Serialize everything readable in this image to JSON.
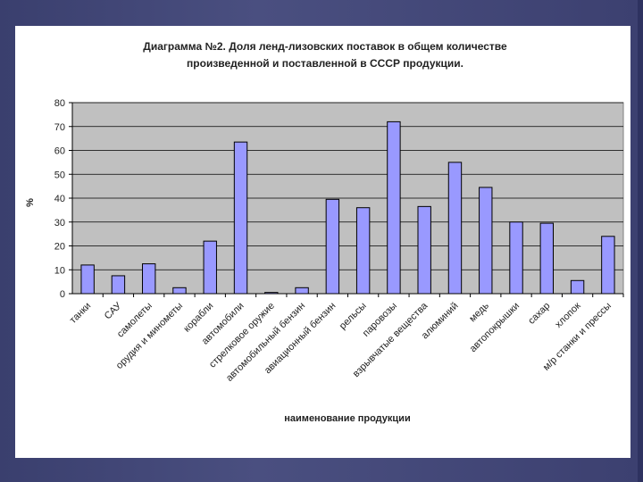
{
  "chart_data": {
    "type": "bar",
    "title_line1": "Диаграмма №2. Доля ленд-лизовских поставок в общем количестве",
    "title_line2": "произведенной и поставленной в СССР продукции.",
    "xlabel": "наименование продукции",
    "ylabel": "%",
    "ylim": [
      0,
      80
    ],
    "yticks": [
      "0",
      "10",
      "20",
      "30",
      "40",
      "50",
      "60",
      "70",
      "80"
    ],
    "grid": true,
    "legend": "none",
    "categories": [
      "танки",
      "САУ",
      "самолеты",
      "орудия и минометы",
      "корабли",
      "автомобили",
      "стрелковое оружие",
      "автомобильный бензин",
      "авиационный бензин",
      "рельсы",
      "паровозы",
      "взрывчатые вещества",
      "алюминий",
      "медь",
      "автопокрышки",
      "сахар",
      "хлопок",
      "м/р станки и прессы"
    ],
    "values": [
      12,
      7.5,
      12.5,
      2.5,
      22,
      63.5,
      0.5,
      2.5,
      39.5,
      36,
      72,
      36.5,
      55,
      44.5,
      30,
      29.5,
      5.5,
      24
    ],
    "colors": {
      "bar_fill": "#9999ff",
      "bar_stroke": "#000000",
      "plot_bg": "#c0c0c0",
      "grid": "#000000"
    }
  }
}
